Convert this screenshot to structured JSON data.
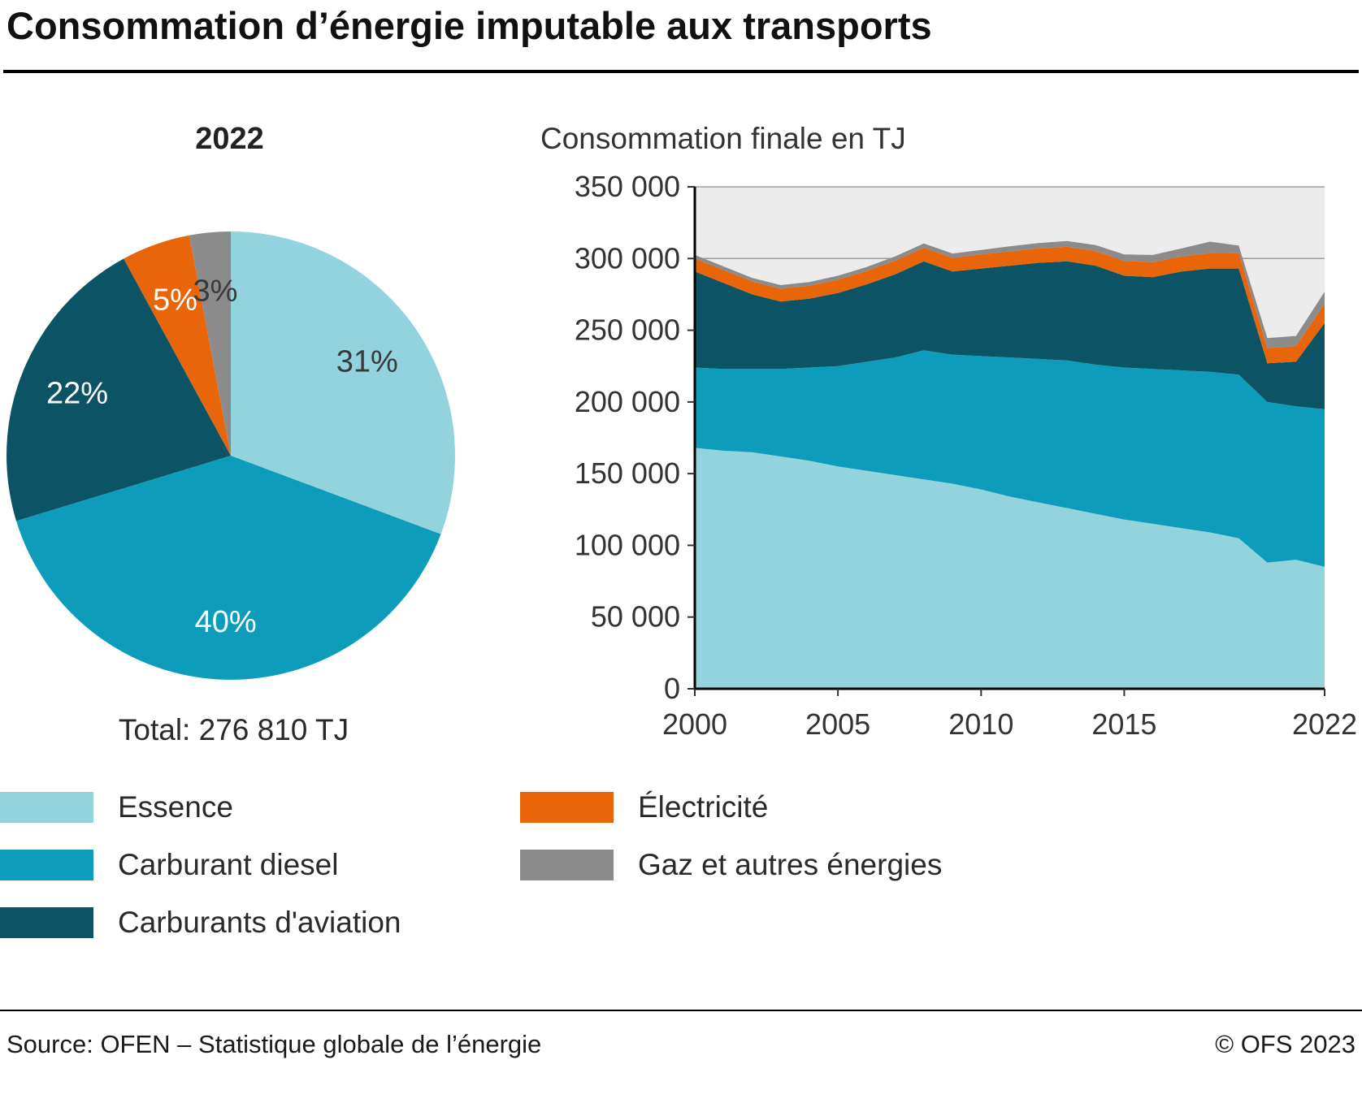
{
  "page_title": "Consommation d’énergie imputable aux transports",
  "pie_title": "2022",
  "pie_total": "Total: 276 810 TJ",
  "area_title": "Consommation finale en TJ",
  "legend": {
    "items": [
      {
        "label": "Essence",
        "color": "#93d3dd"
      },
      {
        "label": "Carburant diesel",
        "color": "#0d9dbb"
      },
      {
        "label": "Carburants d'aviation",
        "color": "#0c5365"
      },
      {
        "label": "Électricité",
        "color": "#e8650a"
      },
      {
        "label": "Gaz et autres énergies",
        "color": "#8b8b8b"
      }
    ]
  },
  "footer": {
    "source": "Source: OFEN – Statistique globale de l’énergie",
    "copyright": "© OFS 2023"
  },
  "chart_data": [
    {
      "type": "pie",
      "title": "2022",
      "total_label": "Total: 276 810 TJ",
      "labels": [
        "Essence",
        "Carburant diesel",
        "Carburants d'aviation",
        "Électricité",
        "Gaz et autres énergies"
      ],
      "values": [
        31,
        40,
        22,
        5,
        3
      ],
      "value_labels": [
        "31%",
        "40%",
        "22%",
        "5%",
        "3%"
      ],
      "colors": [
        "#93d3dd",
        "#0d9dbb",
        "#0c5365",
        "#e8650a",
        "#8b8b8b"
      ],
      "label_colors": [
        "#3a3a3a",
        "#ffffff",
        "#ffffff",
        "#ffffff",
        "#3a3a3a"
      ],
      "start_angle_deg": 0,
      "direction": "clockwise-from-top"
    },
    {
      "type": "area",
      "title": "Consommation finale en TJ",
      "stacked": true,
      "x": [
        2000,
        2001,
        2002,
        2003,
        2004,
        2005,
        2006,
        2007,
        2008,
        2009,
        2010,
        2011,
        2012,
        2013,
        2014,
        2015,
        2016,
        2017,
        2018,
        2019,
        2020,
        2021,
        2022
      ],
      "series": [
        {
          "name": "Essence",
          "color": "#93d3dd",
          "values": [
            168000,
            166000,
            165000,
            162000,
            159000,
            155000,
            152000,
            149000,
            146000,
            143000,
            139000,
            134000,
            130000,
            126000,
            122000,
            118000,
            115000,
            112000,
            109000,
            105000,
            88000,
            90000,
            85000
          ]
        },
        {
          "name": "Carburant diesel",
          "color": "#0d9dbb",
          "values": [
            56000,
            57000,
            58000,
            61000,
            65000,
            70000,
            76000,
            82000,
            90000,
            90000,
            93000,
            97000,
            100000,
            103000,
            104000,
            106000,
            108000,
            110000,
            112000,
            114000,
            112000,
            107000,
            110000
          ]
        },
        {
          "name": "Carburants d'aviation",
          "color": "#0c5365",
          "values": [
            67000,
            60000,
            52000,
            47000,
            48000,
            51000,
            54000,
            58000,
            62000,
            58000,
            61000,
            64000,
            67000,
            69000,
            69000,
            64000,
            64000,
            69000,
            72000,
            74000,
            27000,
            31000,
            60000
          ]
        },
        {
          "name": "Électricité",
          "color": "#e8650a",
          "values": [
            9000,
            9000,
            9000,
            9000,
            9000,
            9200,
            9300,
            9500,
            9500,
            9500,
            9800,
            10000,
            10000,
            10200,
            10200,
            10300,
            10500,
            10500,
            10800,
            11000,
            10500,
            11000,
            13500
          ]
        },
        {
          "name": "Gaz et autres énergies",
          "color": "#8b8b8b",
          "values": [
            2500,
            2500,
            2500,
            2500,
            2600,
            2800,
            2800,
            3000,
            3000,
            3000,
            3200,
            3500,
            3800,
            4000,
            4200,
            4500,
            5000,
            5500,
            8000,
            5000,
            7000,
            7000,
            8310
          ]
        }
      ],
      "ylim": [
        0,
        350000
      ],
      "yticks": [
        0,
        50000,
        100000,
        150000,
        200000,
        250000,
        300000,
        350000
      ],
      "ytick_labels": [
        "0",
        "50 000",
        "100 000",
        "150 000",
        "200 000",
        "250 000",
        "300 000",
        "350 000"
      ],
      "xticks": [
        2000,
        2005,
        2010,
        2015,
        2022
      ],
      "xtick_labels": [
        "2000",
        "2005",
        "2010",
        "2015",
        "2022"
      ],
      "gridlines_y": [
        300000,
        350000
      ],
      "plot_bg": "#ececec",
      "grid_color": "#9d9d9d",
      "xlabel": "",
      "ylabel": "",
      "legend_position": "bottom"
    }
  ]
}
